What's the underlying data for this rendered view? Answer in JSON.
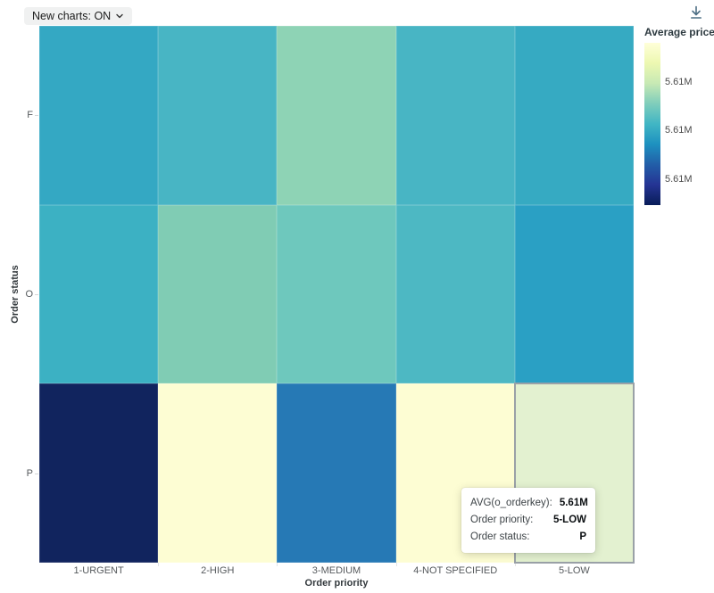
{
  "toolbar": {
    "new_charts_label": "New charts: ON"
  },
  "icons": {
    "chevron_down": "⌄",
    "download": "↓"
  },
  "chart_data": {
    "type": "heatmap",
    "title": "",
    "xlabel": "Order priority",
    "ylabel": "Order status",
    "x_categories": [
      "1-URGENT",
      "2-HIGH",
      "3-MEDIUM",
      "4-NOT SPECIFIED",
      "5-LOW"
    ],
    "y_categories": [
      "F",
      "O",
      "P"
    ],
    "metric": "AVG(o_orderkey)",
    "display_value": "5.61M",
    "cells_note": "all cells display as 5.61M when rounded; color encodes fine-grained differences",
    "cell_colors": [
      [
        "#34a8c3",
        "#48b5c4",
        "#8ed3b5",
        "#48b5c4",
        "#36aac2"
      ],
      [
        "#3cb1c3",
        "#80ccb4",
        "#6ec8bd",
        "#4db8c3",
        "#2aa0c4"
      ],
      [
        "#11245e",
        "#fdfdd3",
        "#2679b5",
        "#fdfdd3",
        "#e3f1d0"
      ]
    ],
    "selected_cell": {
      "x": "5-LOW",
      "y": "P",
      "border_color": "#9aa1a7"
    },
    "legend": {
      "title": "Average price",
      "position": "right",
      "tick_labels": [
        "5.61M",
        "5.61M",
        "5.61M"
      ],
      "gradient_stops": [
        "#ffffd9",
        "#edf8b1",
        "#c7e9b4",
        "#7fcdbb",
        "#41b6c4",
        "#1d91c0",
        "#225ea8",
        "#253494",
        "#081d58"
      ]
    }
  },
  "tooltip": {
    "rows": [
      {
        "label": "AVG(o_orderkey):",
        "value": "5.61M"
      },
      {
        "label": "Order priority:",
        "value": "5-LOW"
      },
      {
        "label": "Order status:",
        "value": "P"
      }
    ]
  }
}
